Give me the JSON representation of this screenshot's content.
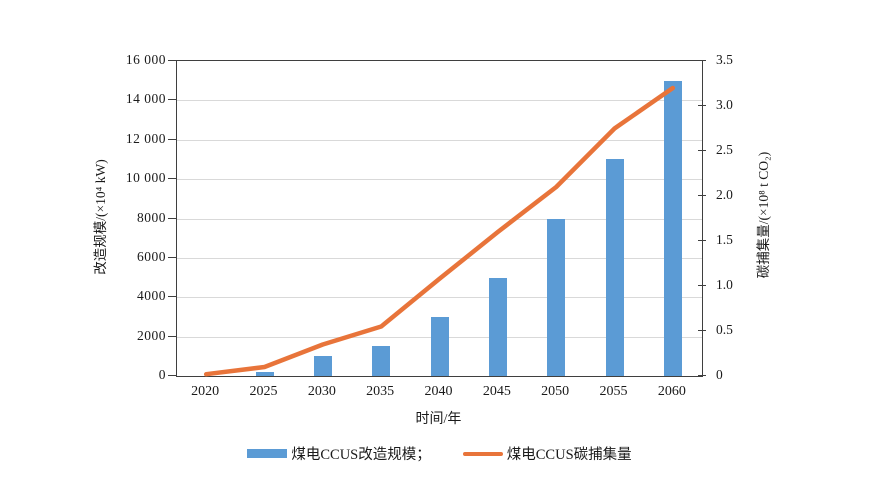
{
  "chart_data": {
    "type": "bar",
    "subtype": "bar-line-combo",
    "categories": [
      "2020",
      "2025",
      "2030",
      "2035",
      "2040",
      "2045",
      "2050",
      "2055",
      "2060"
    ],
    "series": [
      {
        "name": "煤电CCUS改造规模",
        "type": "bar",
        "axis": "left",
        "color": "#5b9bd5",
        "values": [
          0,
          200,
          1000,
          1500,
          3000,
          5000,
          8000,
          11000,
          15000
        ]
      },
      {
        "name": "煤电CCUS碳捕集量",
        "type": "line",
        "axis": "right",
        "color": "#e8743a",
        "values": [
          0.02,
          0.1,
          0.35,
          0.55,
          1.08,
          1.6,
          2.1,
          2.75,
          3.2
        ]
      }
    ],
    "left_axis": {
      "title": "改造规模/(×10⁴ kW)",
      "min": 0,
      "max": 16000,
      "tick_step": 2000,
      "tick_labels_top_to_bottom": [
        "16 000",
        "14 000",
        "12 000",
        "10 000",
        "8000",
        "6000",
        "4000",
        "2000",
        "0"
      ]
    },
    "right_axis": {
      "title": "碳捕集量/(×10⁸ t CO₂)",
      "min": 0,
      "max": 3.5,
      "tick_step": 0.5,
      "tick_labels_top_to_bottom": [
        "3.5",
        "3.0",
        "2.5",
        "2.0",
        "1.5",
        "1.0",
        "0.5",
        "0"
      ]
    },
    "x_axis": {
      "title": "时间/年"
    },
    "grid": "horizontal-on",
    "legend_position": "bottom"
  },
  "legend": {
    "items": [
      {
        "label": "煤电CCUS改造规模；",
        "swatch": "bar-swatch-blue"
      },
      {
        "label": "煤电CCUS碳捕集量",
        "swatch": "line-swatch-orange"
      }
    ]
  },
  "colors": {
    "bar": "#5b9bd5",
    "line": "#e8743a",
    "grid": "#d9d9d9",
    "axis": "#3f3f3f",
    "text": "#1a1a1a",
    "background": "#ffffff"
  }
}
